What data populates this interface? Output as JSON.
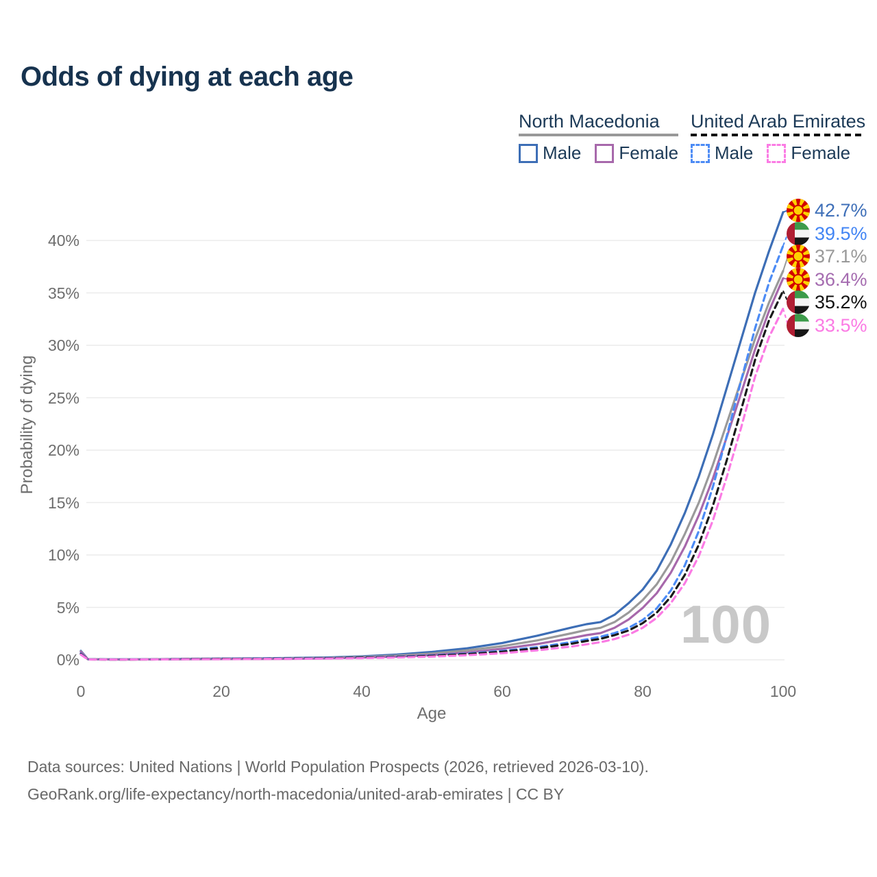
{
  "title": "Odds of dying at each age",
  "watermark_age": "100",
  "legend": {
    "groups": [
      {
        "name": "North Macedonia",
        "line_style": "solid",
        "underline_color": "#999999",
        "items": [
          {
            "label": "Male",
            "color": "#3d6eb6"
          },
          {
            "label": "Female",
            "color": "#a768ab"
          }
        ]
      },
      {
        "name": "United Arab Emirates",
        "line_style": "dashed",
        "underline_color": "#111111",
        "items": [
          {
            "label": "Male",
            "color": "#4c8bf5"
          },
          {
            "label": "Female",
            "color": "#fb7be4"
          }
        ]
      }
    ]
  },
  "axes": {
    "xlabel": "Age",
    "ylabel": "Probability of dying"
  },
  "footer": {
    "line1": "Data sources: United Nations | World Population Prospects (2026, retrieved 2026-03-10).",
    "line2": "GeoRank.org/life-expectancy/north-macedonia/united-arab-emirates | CC BY"
  },
  "chart_data": {
    "type": "line",
    "title": "Odds of dying at each age",
    "xlabel": "Age",
    "ylabel": "Probability of dying",
    "xlim": [
      0,
      100
    ],
    "ylim": [
      0,
      43.5
    ],
    "x_ticks": [
      0,
      20,
      40,
      60,
      80,
      100
    ],
    "y_ticks": [
      {
        "value": 0,
        "label": "0%"
      },
      {
        "value": 5,
        "label": "5%"
      },
      {
        "value": 10,
        "label": "10%"
      },
      {
        "value": 15,
        "label": "15%"
      },
      {
        "value": 20,
        "label": "20%"
      },
      {
        "value": 25,
        "label": "25%"
      },
      {
        "value": 30,
        "label": "30%"
      },
      {
        "value": 35,
        "label": "35%"
      },
      {
        "value": 40,
        "label": "40%"
      }
    ],
    "grid": "horizontal",
    "legend_position": "top-right",
    "hover_age_watermark": "100",
    "ages": [
      0,
      1,
      5,
      10,
      15,
      20,
      25,
      30,
      35,
      40,
      45,
      50,
      55,
      60,
      65,
      70,
      72,
      74,
      76,
      78,
      80,
      82,
      84,
      86,
      88,
      90,
      92,
      94,
      96,
      98,
      100
    ],
    "series": [
      {
        "name": "North Macedonia Male",
        "country": "North Macedonia",
        "sex": "Male",
        "color": "#3d6eb6",
        "dash": "solid",
        "end_label": "42.7%",
        "values": [
          0.85,
          0.06,
          0.04,
          0.05,
          0.09,
          0.12,
          0.14,
          0.17,
          0.22,
          0.33,
          0.5,
          0.75,
          1.1,
          1.6,
          2.3,
          3.1,
          3.4,
          3.6,
          4.3,
          5.4,
          6.7,
          8.5,
          11.0,
          14.0,
          17.5,
          21.5,
          26.0,
          30.5,
          35.0,
          39.0,
          42.7
        ]
      },
      {
        "name": "United Arab Emirates Male",
        "country": "United Arab Emirates",
        "sex": "Male",
        "color": "#4c8bf5",
        "dash": "dashed",
        "end_label": "39.5%",
        "values": [
          0.6,
          0.04,
          0.03,
          0.04,
          0.08,
          0.1,
          0.12,
          0.14,
          0.17,
          0.22,
          0.3,
          0.42,
          0.6,
          0.85,
          1.2,
          1.7,
          1.95,
          2.2,
          2.55,
          3.05,
          3.8,
          4.9,
          6.6,
          9.0,
          12.3,
          16.5,
          21.4,
          26.6,
          31.6,
          36.0,
          39.5
        ]
      },
      {
        "name": "North Macedonia Both sexes",
        "country": "North Macedonia",
        "sex": "Both",
        "color": "#9a9a9a",
        "dash": "solid",
        "end_label": "37.1%",
        "values": [
          0.8,
          0.05,
          0.03,
          0.04,
          0.07,
          0.09,
          0.11,
          0.14,
          0.18,
          0.27,
          0.4,
          0.6,
          0.9,
          1.3,
          1.85,
          2.55,
          2.85,
          3.05,
          3.6,
          4.5,
          5.7,
          7.2,
          9.3,
          12.0,
          15.0,
          18.6,
          22.6,
          26.6,
          30.6,
          34.1,
          37.1
        ]
      },
      {
        "name": "North Macedonia Female",
        "country": "North Macedonia",
        "sex": "Female",
        "color": "#a768ab",
        "dash": "solid",
        "end_label": "36.4%",
        "values": [
          0.75,
          0.05,
          0.03,
          0.04,
          0.05,
          0.07,
          0.08,
          0.1,
          0.14,
          0.21,
          0.31,
          0.46,
          0.7,
          1.05,
          1.5,
          2.1,
          2.35,
          2.55,
          3.05,
          3.85,
          4.95,
          6.35,
          8.3,
          10.8,
          13.8,
          17.3,
          21.3,
          25.4,
          29.6,
          33.3,
          36.4
        ]
      },
      {
        "name": "United Arab Emirates Both sexes",
        "country": "United Arab Emirates",
        "sex": "Both",
        "color": "#1a1a1a",
        "dash": "dashed",
        "end_label": "35.2%",
        "values": [
          0.55,
          0.04,
          0.02,
          0.03,
          0.07,
          0.09,
          0.1,
          0.12,
          0.15,
          0.2,
          0.27,
          0.38,
          0.54,
          0.77,
          1.1,
          1.55,
          1.8,
          2.0,
          2.35,
          2.8,
          3.5,
          4.5,
          6.0,
          8.1,
          11.0,
          14.7,
          19.1,
          23.8,
          28.6,
          32.4,
          35.2
        ]
      },
      {
        "name": "United Arab Emirates Female",
        "country": "United Arab Emirates",
        "sex": "Female",
        "color": "#fb7be4",
        "dash": "dashed",
        "end_label": "33.5%",
        "values": [
          0.5,
          0.03,
          0.02,
          0.03,
          0.05,
          0.06,
          0.08,
          0.09,
          0.12,
          0.16,
          0.22,
          0.31,
          0.44,
          0.63,
          0.9,
          1.28,
          1.48,
          1.68,
          1.98,
          2.4,
          3.05,
          4.0,
          5.4,
          7.3,
          9.9,
          13.3,
          17.5,
          22.1,
          27.0,
          30.8,
          33.5
        ]
      }
    ],
    "end_labels": [
      {
        "flag": "north-macedonia",
        "value": "42.7%",
        "color": "#3e6fb8"
      },
      {
        "flag": "united-arab-emirates",
        "value": "39.5%",
        "color": "#4285f4"
      },
      {
        "flag": "north-macedonia",
        "value": "37.1%",
        "color": "#999999"
      },
      {
        "flag": "north-macedonia",
        "value": "36.4%",
        "color": "#a56cb0"
      },
      {
        "flag": "united-arab-emirates",
        "value": "35.2%",
        "color": "#111111"
      },
      {
        "flag": "united-arab-emirates",
        "value": "33.5%",
        "color": "#fb7be4"
      }
    ]
  }
}
